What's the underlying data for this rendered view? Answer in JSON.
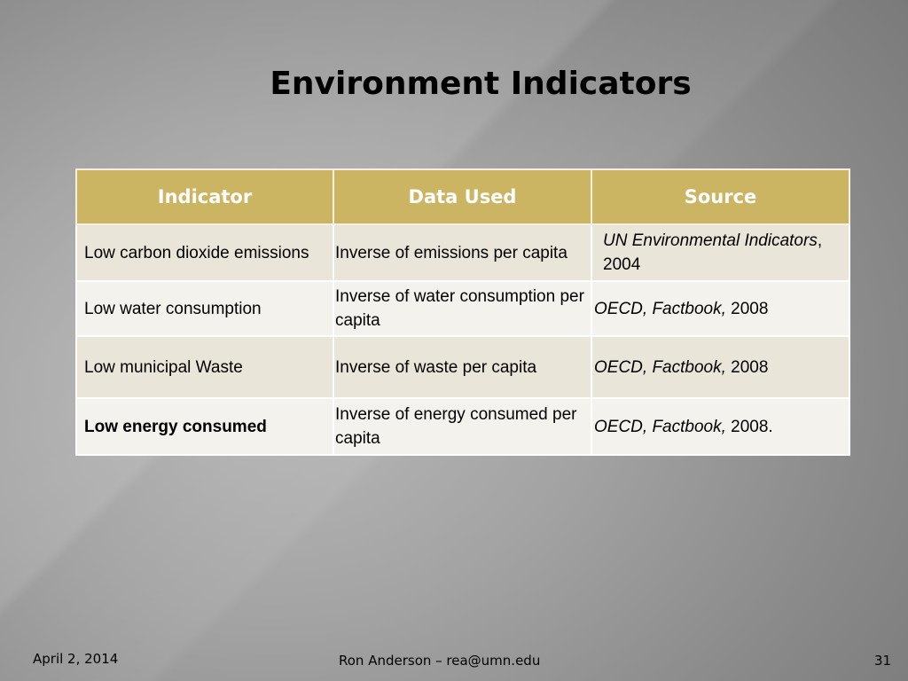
{
  "slide": {
    "title": "Environment Indicators",
    "table": {
      "headers": [
        "Indicator",
        "Data Used",
        "Source"
      ],
      "rows": [
        {
          "indicator": "Low carbon dioxide emissions",
          "data_used": "Inverse of emissions per capita",
          "source_italic": "UN Environmental Indicators",
          "source_rest": ", 2004"
        },
        {
          "indicator": "Low water consumption",
          "data_used": "Inverse of water consumption per capita",
          "source_italic": "OECD, Factbook,",
          "source_rest": " 2008"
        },
        {
          "indicator": "Low municipal Waste",
          "data_used": "Inverse of waste per capita",
          "source_italic": "OECD, Factbook,",
          "source_rest": " 2008"
        },
        {
          "indicator": "Low energy consumed",
          "data_used": "Inverse of energy consumed per capita",
          "source_italic": "OECD, Factbook,",
          "source_rest": " 2008."
        }
      ]
    },
    "footer": {
      "date": "April 2, 2014",
      "author": "Ron Anderson – rea@umn.edu",
      "page": "31"
    }
  }
}
